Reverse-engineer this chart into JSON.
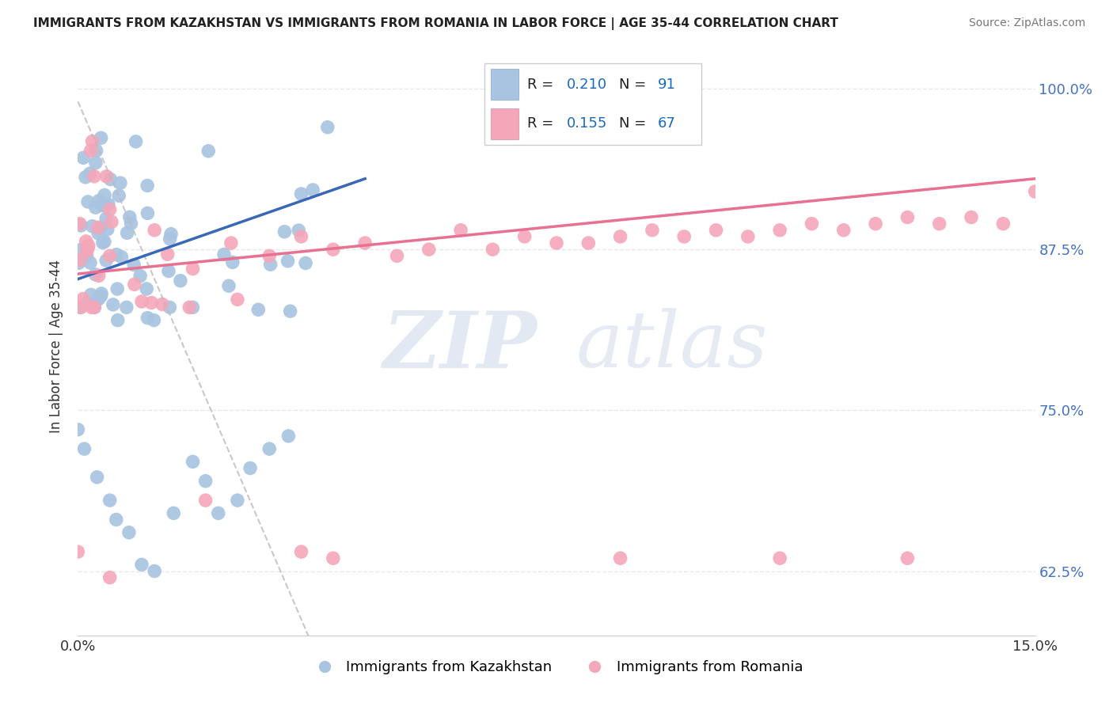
{
  "title": "IMMIGRANTS FROM KAZAKHSTAN VS IMMIGRANTS FROM ROMANIA IN LABOR FORCE | AGE 35-44 CORRELATION CHART",
  "source": "Source: ZipAtlas.com",
  "ylabel": "In Labor Force | Age 35-44",
  "xlim": [
    0.0,
    0.15
  ],
  "ylim": [
    0.575,
    1.025
  ],
  "ytick_labels": [
    "62.5%",
    "75.0%",
    "87.5%",
    "100.0%"
  ],
  "ytick_values": [
    0.625,
    0.75,
    0.875,
    1.0
  ],
  "xtick_labels": [
    "0.0%",
    "15.0%"
  ],
  "xtick_values": [
    0.0,
    0.15
  ],
  "kazakhstan_color": "#a8c4e0",
  "romania_color": "#f4a7b9",
  "kazakhstan_R": 0.21,
  "kazakhstan_N": 91,
  "romania_R": 0.155,
  "romania_N": 67,
  "legend_R_color": "#1a6bbf",
  "legend_N_color": "#1a6bbf",
  "watermark_text": "ZIP",
  "watermark_text2": "atlas",
  "background_color": "#ffffff",
  "grid_color": "#e8e8e8",
  "trendline_kaz_color": "#3a68b8",
  "trendline_rom_color": "#e87090",
  "dashed_color": "#bbbbbb"
}
